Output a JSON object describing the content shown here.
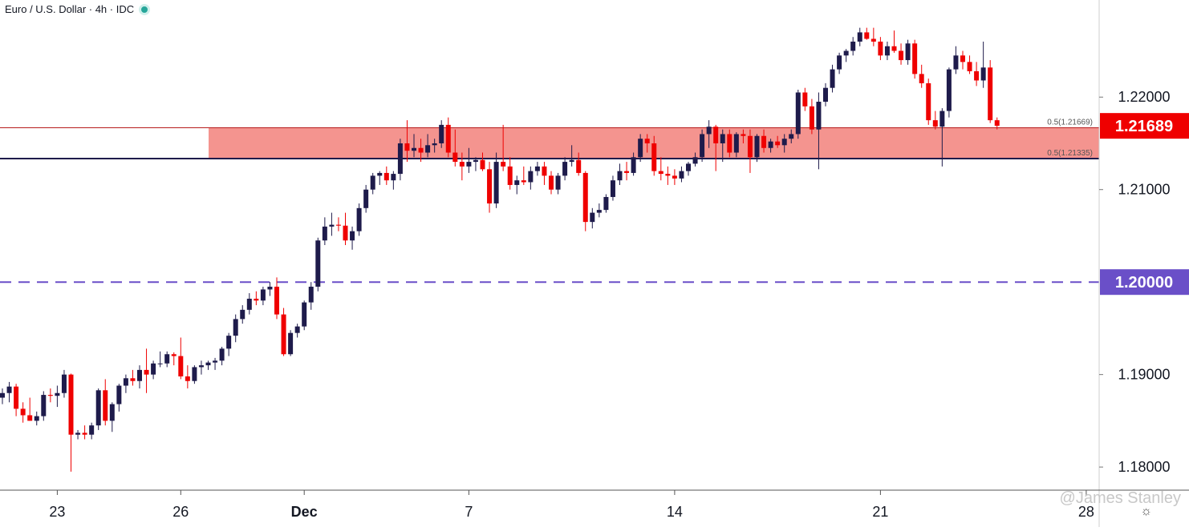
{
  "header": {
    "title": "Euro / U.S. Dollar · 4h · IDC"
  },
  "watermark": "@James Stanley",
  "icons": {
    "status": "status-dot-icon",
    "settings": "gear-icon"
  },
  "colors": {
    "up": "#1e1b4b",
    "down": "#ef0000",
    "zone": "#f4948f",
    "zone_border": "#b71c1c",
    "round_level": "#6a4fc8",
    "price_label_bg": "#ef0000",
    "level_label_bg": "#6a4fc8"
  },
  "chart_data": {
    "type": "candlestick",
    "ylim": [
      1.1775,
      1.2305
    ],
    "y_ticks": [
      "1.18000",
      "1.19000",
      "1.21000",
      "1.22000"
    ],
    "x_ticks": [
      {
        "label": "23",
        "index": 8
      },
      {
        "label": "26",
        "index": 26
      },
      {
        "label": "Dec",
        "index": 44
      },
      {
        "label": "7",
        "index": 68
      },
      {
        "label": "14",
        "index": 98
      },
      {
        "label": "21",
        "index": 128
      },
      {
        "label": "28",
        "index": 158
      }
    ],
    "zone": {
      "top": 1.21669,
      "bottom": 1.21335,
      "top_label": "0.5(1.21669)",
      "bottom_label": "0.5(1.21335)"
    },
    "horizontal_level": {
      "value": 1.2,
      "label": "1.20000"
    },
    "last_price": {
      "value": 1.21689,
      "label": "1.21689"
    },
    "candles": [
      [
        1.1875,
        1.1885,
        1.1868,
        1.188
      ],
      [
        1.188,
        1.1892,
        1.187,
        1.1887
      ],
      [
        1.1887,
        1.189,
        1.1855,
        1.1863
      ],
      [
        1.1863,
        1.187,
        1.1848,
        1.1856
      ],
      [
        1.1856,
        1.1875,
        1.185,
        1.185
      ],
      [
        1.185,
        1.186,
        1.1845,
        1.1855
      ],
      [
        1.1855,
        1.1882,
        1.185,
        1.1878
      ],
      [
        1.1878,
        1.1885,
        1.187,
        1.1877
      ],
      [
        1.1877,
        1.1888,
        1.1865,
        1.188
      ],
      [
        1.188,
        1.1905,
        1.1875,
        1.19
      ],
      [
        1.19,
        1.1901,
        1.1795,
        1.1835
      ],
      [
        1.1835,
        1.184,
        1.183,
        1.1837
      ],
      [
        1.1837,
        1.1845,
        1.183,
        1.1835
      ],
      [
        1.1835,
        1.1848,
        1.183,
        1.1845
      ],
      [
        1.1845,
        1.1885,
        1.184,
        1.1883
      ],
      [
        1.1883,
        1.1895,
        1.1845,
        1.185
      ],
      [
        1.185,
        1.187,
        1.1838,
        1.1868
      ],
      [
        1.1868,
        1.189,
        1.186,
        1.1888
      ],
      [
        1.1888,
        1.19,
        1.188,
        1.1896
      ],
      [
        1.1896,
        1.1905,
        1.1888,
        1.1893
      ],
      [
        1.1893,
        1.191,
        1.1885,
        1.1905
      ],
      [
        1.1905,
        1.1928,
        1.188,
        1.19
      ],
      [
        1.19,
        1.1915,
        1.1895,
        1.1912
      ],
      [
        1.1912,
        1.1925,
        1.1908,
        1.1912
      ],
      [
        1.1912,
        1.1925,
        1.1908,
        1.1922
      ],
      [
        1.1922,
        1.1924,
        1.191,
        1.192
      ],
      [
        1.192,
        1.194,
        1.1895,
        1.1898
      ],
      [
        1.1898,
        1.191,
        1.1885,
        1.1893
      ],
      [
        1.1893,
        1.191,
        1.189,
        1.1908
      ],
      [
        1.1908,
        1.1915,
        1.19,
        1.191
      ],
      [
        1.191,
        1.1915,
        1.1905,
        1.1913
      ],
      [
        1.1913,
        1.1918,
        1.1905,
        1.1915
      ],
      [
        1.1915,
        1.193,
        1.191,
        1.1928
      ],
      [
        1.1928,
        1.1945,
        1.192,
        1.1942
      ],
      [
        1.1942,
        1.1965,
        1.1935,
        1.196
      ],
      [
        1.196,
        1.1975,
        1.1955,
        1.197
      ],
      [
        1.197,
        1.1988,
        1.1965,
        1.1982
      ],
      [
        1.1982,
        1.199,
        1.1975,
        1.198
      ],
      [
        1.198,
        1.1995,
        1.1975,
        1.1992
      ],
      [
        1.1992,
        1.2,
        1.1985,
        1.1995
      ],
      [
        1.1995,
        1.2005,
        1.196,
        1.1965
      ],
      [
        1.1965,
        1.1972,
        1.192,
        1.1922
      ],
      [
        1.1922,
        1.1948,
        1.192,
        1.1945
      ],
      [
        1.1945,
        1.1955,
        1.194,
        1.1952
      ],
      [
        1.1952,
        1.198,
        1.1948,
        1.1978
      ],
      [
        1.1978,
        1.2,
        1.197,
        1.1995
      ],
      [
        1.1995,
        1.2048,
        1.199,
        1.2045
      ],
      [
        1.2045,
        1.207,
        1.204,
        1.206
      ],
      [
        1.206,
        1.2075,
        1.205,
        1.2062
      ],
      [
        1.2062,
        1.207,
        1.2055,
        1.2061
      ],
      [
        1.2061,
        1.2075,
        1.204,
        1.2045
      ],
      [
        1.2045,
        1.206,
        1.2035,
        1.2055
      ],
      [
        1.2055,
        1.2085,
        1.205,
        1.208
      ],
      [
        1.208,
        1.2105,
        1.2075,
        1.21
      ],
      [
        1.21,
        1.2118,
        1.2095,
        1.2115
      ],
      [
        1.2115,
        1.212,
        1.2105,
        1.2118
      ],
      [
        1.2118,
        1.2125,
        1.2105,
        1.211
      ],
      [
        1.211,
        1.212,
        1.21,
        1.2117
      ],
      [
        1.2117,
        1.2155,
        1.211,
        1.215
      ],
      [
        1.215,
        1.2175,
        1.213,
        1.2142
      ],
      [
        1.2142,
        1.216,
        1.2135,
        1.2145
      ],
      [
        1.2145,
        1.2155,
        1.213,
        1.214
      ],
      [
        1.214,
        1.216,
        1.2135,
        1.2148
      ],
      [
        1.2148,
        1.2155,
        1.214,
        1.215
      ],
      [
        1.215,
        1.2175,
        1.2145,
        1.217
      ],
      [
        1.217,
        1.2178,
        1.2135,
        1.214
      ],
      [
        1.214,
        1.2165,
        1.2125,
        1.213
      ],
      [
        1.213,
        1.214,
        1.211,
        1.2125
      ],
      [
        1.2125,
        1.2145,
        1.2118,
        1.213
      ],
      [
        1.213,
        1.2135,
        1.212,
        1.2132
      ],
      [
        1.2132,
        1.214,
        1.212,
        1.2122
      ],
      [
        1.2122,
        1.213,
        1.2075,
        1.2085
      ],
      [
        1.2085,
        1.214,
        1.208,
        1.213
      ],
      [
        1.213,
        1.217,
        1.212,
        1.2125
      ],
      [
        1.2125,
        1.2135,
        1.21,
        1.2105
      ],
      [
        1.2105,
        1.2115,
        1.2095,
        1.211
      ],
      [
        1.211,
        1.2125,
        1.2105,
        1.2108
      ],
      [
        1.2108,
        1.2125,
        1.21,
        1.212
      ],
      [
        1.212,
        1.213,
        1.2115,
        1.2125
      ],
      [
        1.2125,
        1.213,
        1.2105,
        1.2115
      ],
      [
        1.2115,
        1.212,
        1.2095,
        1.21
      ],
      [
        1.21,
        1.2118,
        1.2095,
        1.2115
      ],
      [
        1.2115,
        1.2135,
        1.211,
        1.213
      ],
      [
        1.213,
        1.2148,
        1.2125,
        1.2132
      ],
      [
        1.2132,
        1.214,
        1.2115,
        1.2118
      ],
      [
        1.2118,
        1.212,
        1.2055,
        1.2065
      ],
      [
        1.2065,
        1.208,
        1.2058,
        1.2075
      ],
      [
        1.2075,
        1.2085,
        1.207,
        1.2078
      ],
      [
        1.2078,
        1.2095,
        1.2075,
        1.2092
      ],
      [
        1.2092,
        1.2115,
        1.2088,
        1.211
      ],
      [
        1.211,
        1.2128,
        1.2105,
        1.212
      ],
      [
        1.212,
        1.213,
        1.211,
        1.2118
      ],
      [
        1.2118,
        1.214,
        1.2115,
        1.2135
      ],
      [
        1.2135,
        1.216,
        1.213,
        1.2155
      ],
      [
        1.2155,
        1.216,
        1.214,
        1.215
      ],
      [
        1.215,
        1.2158,
        1.2115,
        1.212
      ],
      [
        1.212,
        1.2135,
        1.211,
        1.2117
      ],
      [
        1.2117,
        1.2125,
        1.2105,
        1.2115
      ],
      [
        1.2115,
        1.2122,
        1.2105,
        1.2112
      ],
      [
        1.2112,
        1.2125,
        1.2108,
        1.212
      ],
      [
        1.212,
        1.213,
        1.2115,
        1.2128
      ],
      [
        1.2128,
        1.214,
        1.2125,
        1.2135
      ],
      [
        1.2135,
        1.2165,
        1.213,
        1.216
      ],
      [
        1.216,
        1.2175,
        1.2145,
        1.2168
      ],
      [
        1.2168,
        1.217,
        1.212,
        1.215
      ],
      [
        1.215,
        1.2165,
        1.213,
        1.216
      ],
      [
        1.216,
        1.2165,
        1.2135,
        1.214
      ],
      [
        1.214,
        1.2162,
        1.2135,
        1.216
      ],
      [
        1.216,
        1.2165,
        1.215,
        1.2158
      ],
      [
        1.2158,
        1.2165,
        1.2118,
        1.2135
      ],
      [
        1.2135,
        1.216,
        1.213,
        1.2158
      ],
      [
        1.2158,
        1.2165,
        1.214,
        1.2145
      ],
      [
        1.2145,
        1.2155,
        1.214,
        1.2152
      ],
      [
        1.2152,
        1.2158,
        1.2145,
        1.2148
      ],
      [
        1.2148,
        1.216,
        1.214,
        1.2155
      ],
      [
        1.2155,
        1.2165,
        1.215,
        1.216
      ],
      [
        1.216,
        1.2208,
        1.2155,
        1.2205
      ],
      [
        1.2205,
        1.221,
        1.2185,
        1.219
      ],
      [
        1.219,
        1.2198,
        1.216,
        1.2165
      ],
      [
        1.2165,
        1.2205,
        1.2122,
        1.2195
      ],
      [
        1.2195,
        1.2215,
        1.219,
        1.221
      ],
      [
        1.221,
        1.2235,
        1.2205,
        1.223
      ],
      [
        1.223,
        1.2248,
        1.2225,
        1.2245
      ],
      [
        1.2245,
        1.2252,
        1.2238,
        1.225
      ],
      [
        1.225,
        1.2265,
        1.2245,
        1.226
      ],
      [
        1.226,
        1.2275,
        1.2255,
        1.227
      ],
      [
        1.227,
        1.2275,
        1.2262,
        1.2263
      ],
      [
        1.2263,
        1.2275,
        1.2255,
        1.226
      ],
      [
        1.226,
        1.2265,
        1.224,
        1.2245
      ],
      [
        1.2245,
        1.226,
        1.224,
        1.2255
      ],
      [
        1.2255,
        1.2272,
        1.2248,
        1.225
      ],
      [
        1.225,
        1.2258,
        1.2235,
        1.224
      ],
      [
        1.224,
        1.2262,
        1.2235,
        1.2258
      ],
      [
        1.2258,
        1.2262,
        1.222,
        1.2225
      ],
      [
        1.2225,
        1.2235,
        1.221,
        1.2215
      ],
      [
        1.2215,
        1.222,
        1.217,
        1.2175
      ],
      [
        1.2175,
        1.2185,
        1.2165,
        1.2168
      ],
      [
        1.2168,
        1.2188,
        1.2125,
        1.2185
      ],
      [
        1.2185,
        1.2232,
        1.2178,
        1.223
      ],
      [
        1.223,
        1.2255,
        1.2225,
        1.2245
      ],
      [
        1.2245,
        1.225,
        1.223,
        1.2238
      ],
      [
        1.2238,
        1.2245,
        1.2225,
        1.2228
      ],
      [
        1.2228,
        1.2238,
        1.2212,
        1.2218
      ],
      [
        1.2218,
        1.226,
        1.221,
        1.2232
      ],
      [
        1.2232,
        1.224,
        1.2172,
        1.2175
      ],
      [
        1.2175,
        1.2178,
        1.2165,
        1.2169
      ]
    ]
  }
}
